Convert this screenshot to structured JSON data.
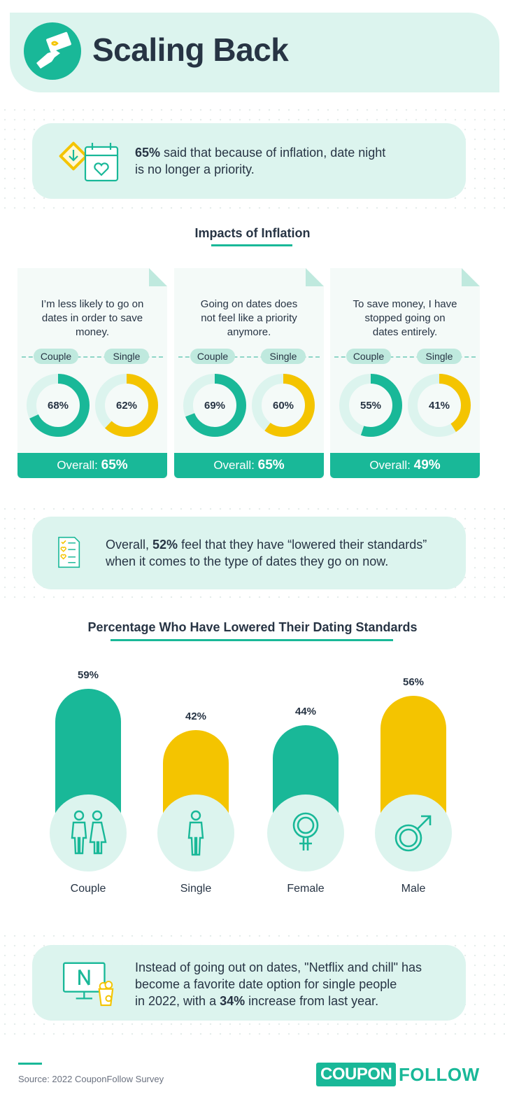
{
  "header": {
    "title": "Scaling Back"
  },
  "callout1": {
    "pct": "65%",
    "text_a": " said that because of inflation, date night",
    "text_b": "is no longer a priority."
  },
  "impacts": {
    "title": "Impacts of Inflation",
    "couple_label": "Couple",
    "single_label": "Single",
    "overall_label": "Overall:",
    "cards": [
      {
        "lines": [
          "I’m less likely to go on",
          "dates in order to save",
          "money."
        ],
        "couple": 68,
        "single": 62,
        "couple_text": "68%",
        "single_text": "62%",
        "overall": "65%"
      },
      {
        "lines": [
          "Going on dates does",
          "not feel like a priority",
          "anymore."
        ],
        "couple": 69,
        "single": 60,
        "couple_text": "69%",
        "single_text": "60%",
        "overall": "65%"
      },
      {
        "lines": [
          "To save money, I have",
          "stopped going on",
          "dates entirely."
        ],
        "couple": 55,
        "single": 41,
        "couple_text": "55%",
        "single_text": "41%",
        "overall": "49%"
      }
    ]
  },
  "callout2": {
    "pre": "Overall, ",
    "pct": "52%",
    "text_a": " feel that they have “lowered their standards”",
    "text_b": "when it comes to the type of dates they go on now."
  },
  "chart_data": {
    "type": "bar",
    "title": "Percentage Who Have Lowered Their Dating Standards",
    "categories": [
      "Couple",
      "Single",
      "Female",
      "Male"
    ],
    "values": [
      59,
      42,
      44,
      56
    ],
    "value_labels": [
      "59%",
      "42%",
      "44%",
      "56%"
    ],
    "colors": [
      "#19b898",
      "#f4c400",
      "#19b898",
      "#f4c400"
    ],
    "icons": [
      "couple-icon",
      "single-person-icon",
      "female-symbol-icon",
      "male-symbol-icon"
    ]
  },
  "callout3": {
    "line1": "Instead of going out on dates, \"Netflix and chill\" has",
    "line2": "become a favorite date option for single people",
    "line3_pre": "in 2022, with a ",
    "pct": "34%",
    "line3_post": " increase from last year."
  },
  "footer": {
    "source": "Source: 2022 CouponFollow Survey",
    "brand_a": "COUPON",
    "brand_b": "FOLLOW"
  },
  "colors": {
    "teal": "#19b898",
    "yellow": "#f4c400",
    "mint": "#dcf4ee",
    "navy": "#273444"
  }
}
